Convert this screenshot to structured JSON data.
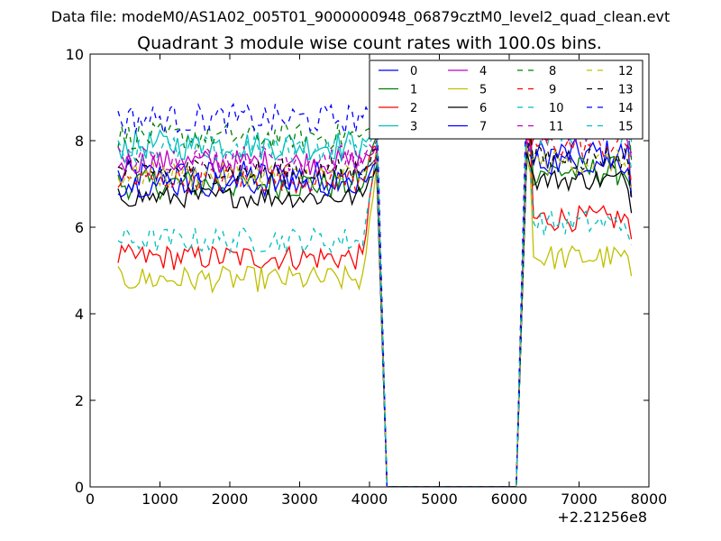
{
  "header": {
    "data_file": "Data file: modeM0/AS1A02_005T01_9000000948_06879cztM0_level2_quad_clean.evt"
  },
  "chart_data": {
    "type": "line",
    "title": "Quadrant 3 module wise count rates with 100.0s bins.",
    "xlabel": "",
    "ylabel": "",
    "xlim": [
      0,
      8000
    ],
    "ylim": [
      0,
      10
    ],
    "x_offset_label": "+2.21256e8",
    "xticks": [
      0,
      1000,
      2000,
      3000,
      4000,
      5000,
      6000,
      7000,
      8000
    ],
    "xtick_labels": [
      "0",
      "1000",
      "2000",
      "3000",
      "4000",
      "5000",
      "6000",
      "7000",
      "8000"
    ],
    "yticks": [
      0,
      2,
      4,
      6,
      8,
      10
    ],
    "ytick_labels": [
      "0",
      "2",
      "4",
      "6",
      "8",
      "10"
    ],
    "grid": false,
    "legend_position": "top-right",
    "x_start": 400,
    "x_step": 50,
    "n_before": 74,
    "gap_start": 4250,
    "gap_end": 6100,
    "n_after": 30,
    "series": [
      {
        "name": "0",
        "color": "#0000ff",
        "dash": "solid",
        "level1": 7.2,
        "level2": 7.7,
        "noise": 0.35,
        "spike": 7.6
      },
      {
        "name": "1",
        "color": "#008000",
        "dash": "solid",
        "level1": 7.0,
        "level2": 7.3,
        "noise": 0.35,
        "spike": 8.1
      },
      {
        "name": "2",
        "color": "#ff0000",
        "dash": "solid",
        "level1": 5.3,
        "level2": 6.2,
        "noise": 0.3,
        "spike": 7.8
      },
      {
        "name": "3",
        "color": "#00bfbf",
        "dash": "solid",
        "level1": 7.9,
        "level2": 8.6,
        "noise": 0.35,
        "spike": 8.4
      },
      {
        "name": "4",
        "color": "#bf00bf",
        "dash": "solid",
        "level1": 7.5,
        "level2": 8.2,
        "noise": 0.3,
        "spike": 7.9
      },
      {
        "name": "5",
        "color": "#bfbf00",
        "dash": "solid",
        "level1": 4.8,
        "level2": 5.3,
        "noise": 0.3,
        "spike": 7.4
      },
      {
        "name": "6",
        "color": "#000000",
        "dash": "solid",
        "level1": 6.7,
        "level2": 7.1,
        "noise": 0.25,
        "spike": 7.4
      },
      {
        "name": "7",
        "color": "#0000ff",
        "dash": "solid",
        "level1": 7.0,
        "level2": 7.5,
        "noise": 0.3,
        "spike": 7.5
      },
      {
        "name": "8",
        "color": "#008000",
        "dash": "dashed",
        "level1": 8.1,
        "level2": 8.3,
        "noise": 0.3,
        "spike": 8.5
      },
      {
        "name": "9",
        "color": "#ff0000",
        "dash": "dashed",
        "level1": 7.1,
        "level2": 7.9,
        "noise": 0.3,
        "spike": 7.9
      },
      {
        "name": "10",
        "color": "#00bfbf",
        "dash": "dashed",
        "level1": 5.7,
        "level2": 6.1,
        "noise": 0.3,
        "spike": 7.6
      },
      {
        "name": "11",
        "color": "#bf00bf",
        "dash": "dashed",
        "level1": 7.6,
        "level2": 8.3,
        "noise": 0.3,
        "spike": 8.0
      },
      {
        "name": "12",
        "color": "#bfbf00",
        "dash": "dashed",
        "level1": 7.2,
        "level2": 7.5,
        "noise": 0.3,
        "spike": 7.7
      },
      {
        "name": "13",
        "color": "#000000",
        "dash": "dashed",
        "level1": 7.3,
        "level2": 7.6,
        "noise": 0.3,
        "spike": 7.8
      },
      {
        "name": "14",
        "color": "#0000ff",
        "dash": "dashed",
        "level1": 8.5,
        "level2": 8.7,
        "noise": 0.35,
        "spike": 9.0
      },
      {
        "name": "15",
        "color": "#00bfbf",
        "dash": "dashed",
        "level1": 7.8,
        "level2": 8.2,
        "noise": 0.3,
        "spike": 8.2
      }
    ]
  }
}
